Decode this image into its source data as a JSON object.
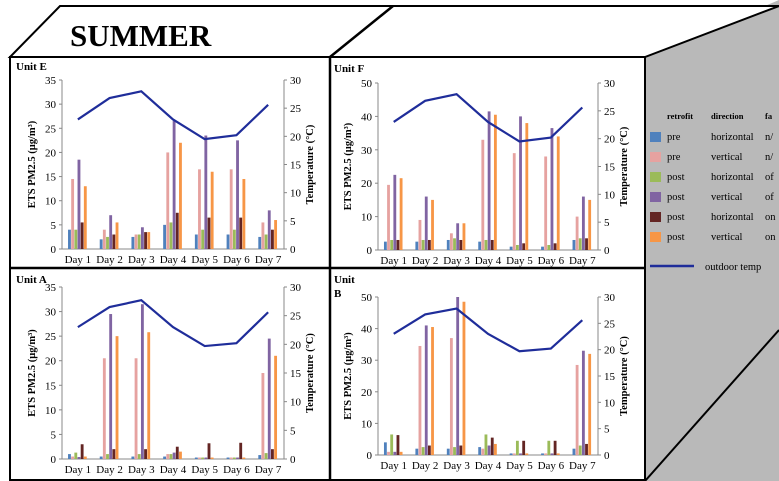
{
  "title": "SUMMER",
  "y_left_label": "ETS PM2.5 (μg/m³)",
  "y_right_label": "Temperature (°C)",
  "legend": {
    "headers": [
      "retrofit",
      "direction",
      "fa"
    ],
    "entries": [
      {
        "retrofit": "pre",
        "direction": "horizontal",
        "fan": "n/",
        "color": "#4f81bd"
      },
      {
        "retrofit": "pre",
        "direction": "vertical",
        "fan": "n/",
        "color": "#e6a2a0"
      },
      {
        "retrofit": "post",
        "direction": "horizontal",
        "fan": "of",
        "color": "#9bbb59"
      },
      {
        "retrofit": "post",
        "direction": "vertical",
        "fan": "of",
        "color": "#8064a2"
      },
      {
        "retrofit": "post",
        "direction": "horizontal",
        "fan": "on",
        "color": "#632523"
      },
      {
        "retrofit": "post",
        "direction": "vertical",
        "fan": "on",
        "color": "#f79646"
      }
    ],
    "line_label": "outdoor temp",
    "line_color": "#1f2d9a"
  },
  "chart_data": [
    {
      "type": "bar",
      "label": "Unit E",
      "categories": [
        "Day 1",
        "Day 2",
        "Day 3",
        "Day 4",
        "Day 5",
        "Day 6",
        "Day 7"
      ],
      "ylim": [
        0,
        35
      ],
      "y_ticks": [
        0,
        5,
        10,
        15,
        20,
        25,
        30,
        35
      ],
      "y2lim": [
        0,
        30
      ],
      "y2_ticks": [
        0,
        5,
        10,
        15,
        20,
        25,
        30
      ],
      "series": [
        {
          "values": [
            4,
            2,
            2.5,
            5,
            3,
            3,
            2.5
          ]
        },
        {
          "values": [
            14.5,
            4,
            3,
            20,
            16.5,
            16.5,
            5.5
          ]
        },
        {
          "values": [
            4,
            2.5,
            3,
            5.5,
            4,
            4,
            3
          ]
        },
        {
          "values": [
            18.5,
            7,
            4.5,
            26.5,
            23.5,
            22.5,
            8
          ]
        },
        {
          "values": [
            5.5,
            3,
            3.5,
            7.5,
            6.5,
            6.5,
            4
          ]
        },
        {
          "values": [
            13,
            5.5,
            3.5,
            22,
            16,
            14.5,
            6
          ]
        }
      ],
      "line": [
        23,
        26.8,
        28,
        23,
        19.5,
        20.2,
        25.6
      ]
    },
    {
      "type": "bar",
      "label": "Unit F",
      "categories": [
        "Day 1",
        "Day 2",
        "Day 3",
        "Day 4",
        "Day 5",
        "Day 6",
        "Day 7"
      ],
      "ylim": [
        0,
        50
      ],
      "y_ticks": [
        0,
        10,
        20,
        30,
        40,
        50
      ],
      "y2lim": [
        0,
        30
      ],
      "y2_ticks": [
        0,
        5,
        10,
        15,
        20,
        25,
        30
      ],
      "series": [
        {
          "values": [
            2.5,
            2.5,
            3,
            2.5,
            1,
            1,
            3
          ]
        },
        {
          "values": [
            19.5,
            9,
            5,
            33,
            29,
            28,
            10
          ]
        },
        {
          "values": [
            3,
            3,
            3.5,
            3,
            1.5,
            1.5,
            3.5
          ]
        },
        {
          "values": [
            22.5,
            16,
            8,
            41.5,
            40,
            36.5,
            16
          ]
        },
        {
          "values": [
            3,
            3,
            3,
            3,
            2,
            2,
            3.5
          ]
        },
        {
          "values": [
            21.5,
            15,
            8,
            40.5,
            38,
            34,
            15
          ]
        }
      ],
      "line": [
        23,
        26.8,
        28,
        23,
        19.5,
        20.2,
        25.6
      ]
    },
    {
      "type": "bar",
      "label": "Unit A",
      "categories": [
        "Day 1",
        "Day 2",
        "Day 3",
        "Day 4",
        "Day 5",
        "Day 6",
        "Day 7"
      ],
      "ylim": [
        0,
        35
      ],
      "y_ticks": [
        0,
        5,
        10,
        15,
        20,
        25,
        30,
        35
      ],
      "y2lim": [
        0,
        30
      ],
      "y2_ticks": [
        0,
        5,
        10,
        15,
        20,
        25,
        30
      ],
      "series": [
        {
          "values": [
            1,
            0.5,
            0.5,
            0.5,
            0.3,
            0.3,
            0.8
          ]
        },
        {
          "values": [
            0.5,
            20.5,
            20.5,
            1,
            0.3,
            0.3,
            17.5
          ]
        },
        {
          "values": [
            1.3,
            1,
            1,
            1,
            0.3,
            0.3,
            1.2
          ]
        },
        {
          "values": [
            0.4,
            29.5,
            31.5,
            1.3,
            0.3,
            0.3,
            24.5
          ]
        },
        {
          "values": [
            3,
            2,
            2,
            2.5,
            3.2,
            3.3,
            2
          ]
        },
        {
          "values": [
            0.5,
            25,
            25.8,
            1.5,
            0.3,
            0.3,
            21
          ]
        }
      ],
      "line": [
        23,
        26.5,
        27.7,
        23,
        19.7,
        20.2,
        25.6
      ]
    },
    {
      "type": "bar",
      "label": "Unit",
      "label_line2": "B",
      "categories": [
        "Day 1",
        "Day 2",
        "Day 3",
        "Day 4",
        "Day 5",
        "Day 6",
        "Day 7"
      ],
      "ylim": [
        0,
        50
      ],
      "y_ticks": [
        0,
        10,
        20,
        30,
        40,
        50
      ],
      "y2lim": [
        0,
        30
      ],
      "y2_ticks": [
        0,
        5,
        10,
        15,
        20,
        25,
        30
      ],
      "series": [
        {
          "values": [
            4,
            2,
            2,
            2.5,
            0.5,
            0.5,
            2
          ]
        },
        {
          "values": [
            1,
            34.5,
            37,
            2,
            0.5,
            0.5,
            28.5
          ]
        },
        {
          "values": [
            6.5,
            2.5,
            2.5,
            6.5,
            4.5,
            4.5,
            3
          ]
        },
        {
          "values": [
            1,
            41,
            50,
            3,
            0.5,
            0.5,
            33
          ]
        },
        {
          "values": [
            6.3,
            3,
            3,
            5.5,
            4.5,
            4.5,
            3.5
          ]
        },
        {
          "values": [
            1,
            40.5,
            48.5,
            3.5,
            0.5,
            0.5,
            32
          ]
        }
      ],
      "line": [
        23,
        26.7,
        27.8,
        23,
        19.7,
        20.2,
        25.6
      ]
    }
  ]
}
